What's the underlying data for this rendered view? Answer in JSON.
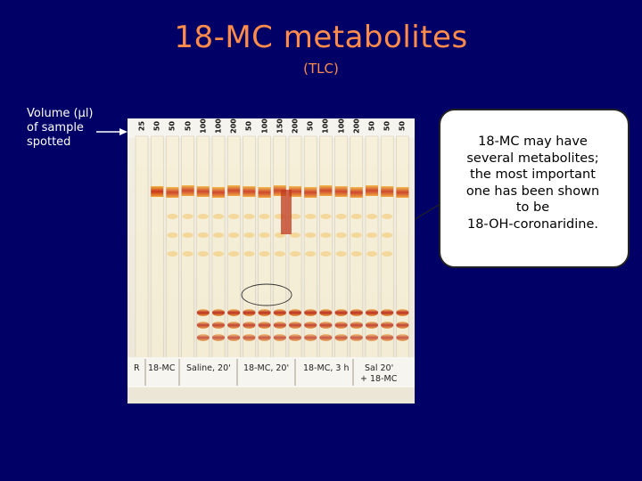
{
  "title": "18-MC metabolites",
  "subtitle": "(TLC)",
  "volume_label": [
    "Volume (µl)",
    "of sample",
    "spotted"
  ],
  "lane_volumes": [
    "25",
    "50",
    "50",
    "50",
    "100",
    "100",
    "200",
    "50",
    "100",
    "150",
    "200",
    "50",
    "100",
    "100",
    "200",
    "50",
    "50",
    "50"
  ],
  "plate_labels": {
    "r": "R",
    "std": "18-MC",
    "saline": "Saline, 20'",
    "mc20": "18-MC, 20'",
    "mc3h": "18-MC, 3 h",
    "sal_line1": "Sal 20'",
    "sal_line2": "+ 18-MC"
  },
  "callout_lines": [
    "18-MC may have",
    "several metabolites;",
    "the most important",
    "one has been shown",
    "to be",
    "18-OH-coronaridine."
  ],
  "colors": {
    "background": "#000066",
    "title": "#ff8c4a",
    "callout_bg": "#ffffff"
  }
}
